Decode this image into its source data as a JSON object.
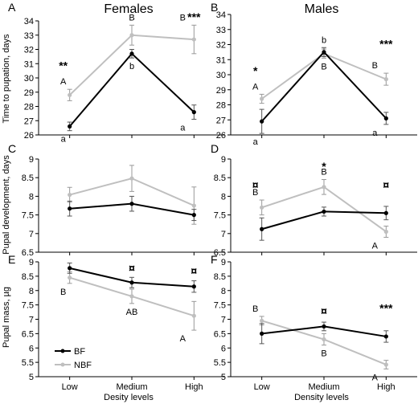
{
  "figure": {
    "female_title": "Females",
    "male_title": "Males",
    "ylabels": [
      "Time to pupation, days",
      "Pupal development, days",
      "Pupal mass, µg"
    ],
    "xlabels": [
      "Desity levels",
      "Density levels"
    ]
  },
  "legend": {
    "items": [
      {
        "label": "BF",
        "color": "#000000"
      },
      {
        "label": "NBF",
        "color": "#bfbfbf"
      }
    ]
  },
  "chart_data": [
    {
      "panel": "A",
      "type": "line",
      "group": "Females",
      "categories": [
        "Low",
        "Medium",
        "High"
      ],
      "ylabel": "Time to pupation, days",
      "ylim": [
        26,
        34
      ],
      "yticks": [
        26,
        27,
        28,
        29,
        30,
        31,
        32,
        33,
        34
      ],
      "series": [
        {
          "name": "BF",
          "color": "#000000",
          "values": [
            26.6,
            31.7,
            27.6
          ],
          "errors": [
            0.3,
            0.3,
            0.5
          ],
          "letters": [
            "a",
            "b",
            "a"
          ]
        },
        {
          "name": "NBF",
          "color": "#bfbfbf",
          "values": [
            28.8,
            33.0,
            32.7
          ],
          "errors": [
            0.4,
            0.7,
            1.0
          ],
          "letters": [
            "A",
            "B",
            "B"
          ]
        }
      ],
      "annotations": [
        {
          "text": "**",
          "category": "Low",
          "y": 30.6
        },
        {
          "text": "***",
          "category": "High",
          "y": 34.0
        }
      ]
    },
    {
      "panel": "B",
      "type": "line",
      "group": "Males",
      "categories": [
        "Low",
        "Medium",
        "High"
      ],
      "ylim": [
        26,
        34
      ],
      "yticks": [
        26,
        27,
        28,
        29,
        30,
        31,
        32,
        33,
        34
      ],
      "series": [
        {
          "name": "BF",
          "color": "#000000",
          "values": [
            26.9,
            31.5,
            27.1
          ],
          "errors": [
            0.8,
            0.3,
            0.4
          ],
          "letters": [
            "a",
            "b",
            "a"
          ]
        },
        {
          "name": "NBF",
          "color": "#bfbfbf",
          "values": [
            28.4,
            31.4,
            29.7
          ],
          "errors": [
            0.3,
            0.3,
            0.4
          ],
          "letters": [
            "A",
            "B",
            "B"
          ]
        }
      ],
      "annotations": [
        {
          "text": "*",
          "category": "Low",
          "y": 30.0
        },
        {
          "text": "***",
          "category": "High",
          "y": 31.8
        }
      ]
    },
    {
      "panel": "C",
      "type": "line",
      "group": "Females",
      "categories": [
        "Low",
        "Medium",
        "High"
      ],
      "ylabel": "Pupal development, days",
      "ylim": [
        6.5,
        9
      ],
      "yticks": [
        6.5,
        7,
        7.5,
        8,
        8.5,
        9
      ],
      "series": [
        {
          "name": "BF",
          "color": "#000000",
          "values": [
            7.67,
            7.8,
            7.5
          ],
          "errors": [
            0.2,
            0.2,
            0.15
          ],
          "letters": [
            "",
            "",
            ""
          ]
        },
        {
          "name": "NBF",
          "color": "#bfbfbf",
          "values": [
            8.04,
            8.48,
            7.75
          ],
          "errors": [
            0.2,
            0.35,
            0.5
          ],
          "letters": [
            "",
            "",
            ""
          ]
        }
      ],
      "annotations": []
    },
    {
      "panel": "D",
      "type": "line",
      "group": "Males",
      "categories": [
        "Low",
        "Medium",
        "High"
      ],
      "ylim": [
        6.5,
        9
      ],
      "yticks": [
        6.5,
        7,
        7.5,
        8,
        8.5,
        9
      ],
      "series": [
        {
          "name": "BF",
          "color": "#000000",
          "values": [
            7.12,
            7.59,
            7.55
          ],
          "errors": [
            0.3,
            0.12,
            0.18
          ],
          "letters": [
            "",
            "",
            ""
          ]
        },
        {
          "name": "NBF",
          "color": "#bfbfbf",
          "values": [
            7.7,
            8.25,
            7.05
          ],
          "errors": [
            0.2,
            0.2,
            0.15
          ],
          "letters": [
            "B",
            "B",
            "A"
          ]
        }
      ],
      "annotations": [
        {
          "text": "¤",
          "category": "Low",
          "y": 8.2
        },
        {
          "text": "*",
          "category": "Medium",
          "y": 8.7
        },
        {
          "text": "¤",
          "category": "High",
          "y": 8.2
        }
      ]
    },
    {
      "panel": "E",
      "type": "line",
      "group": "Females",
      "categories": [
        "Low",
        "Medium",
        "High"
      ],
      "ylabel": "Pupal mass, µg",
      "ylim": [
        5,
        9
      ],
      "yticks": [
        5,
        5.5,
        6,
        6.5,
        7,
        7.5,
        8,
        8.5,
        9
      ],
      "series": [
        {
          "name": "BF",
          "color": "#000000",
          "values": [
            8.78,
            8.28,
            8.14
          ],
          "errors": [
            0.18,
            0.18,
            0.2
          ],
          "letters": [
            "",
            "",
            ""
          ]
        },
        {
          "name": "NBF",
          "color": "#bfbfbf",
          "values": [
            8.45,
            7.8,
            7.12
          ],
          "errors": [
            0.2,
            0.25,
            0.5
          ],
          "letters": [
            "B",
            "AB",
            "A"
          ]
        }
      ],
      "annotations": [
        {
          "text": "¤",
          "category": "Medium",
          "y": 8.65
        },
        {
          "text": "¤",
          "category": "High",
          "y": 8.55
        }
      ]
    },
    {
      "panel": "F",
      "type": "line",
      "group": "Males",
      "categories": [
        "Low",
        "Medium",
        "High"
      ],
      "ylim": [
        5,
        9
      ],
      "yticks": [
        5,
        5.5,
        6,
        6.5,
        7,
        7.5,
        8,
        8.5,
        9
      ],
      "series": [
        {
          "name": "BF",
          "color": "#000000",
          "values": [
            6.5,
            6.75,
            6.4
          ],
          "errors": [
            0.35,
            0.15,
            0.2
          ],
          "letters": [
            "",
            "",
            ""
          ]
        },
        {
          "name": "NBF",
          "color": "#bfbfbf",
          "values": [
            6.95,
            6.3,
            5.42
          ],
          "errors": [
            0.15,
            0.2,
            0.15
          ],
          "letters": [
            "B",
            "B",
            "A"
          ]
        }
      ],
      "annotations": [
        {
          "text": "¤",
          "category": "Medium",
          "y": 7.15
        },
        {
          "text": "***",
          "category": "High",
          "y": 7.25
        }
      ]
    }
  ]
}
